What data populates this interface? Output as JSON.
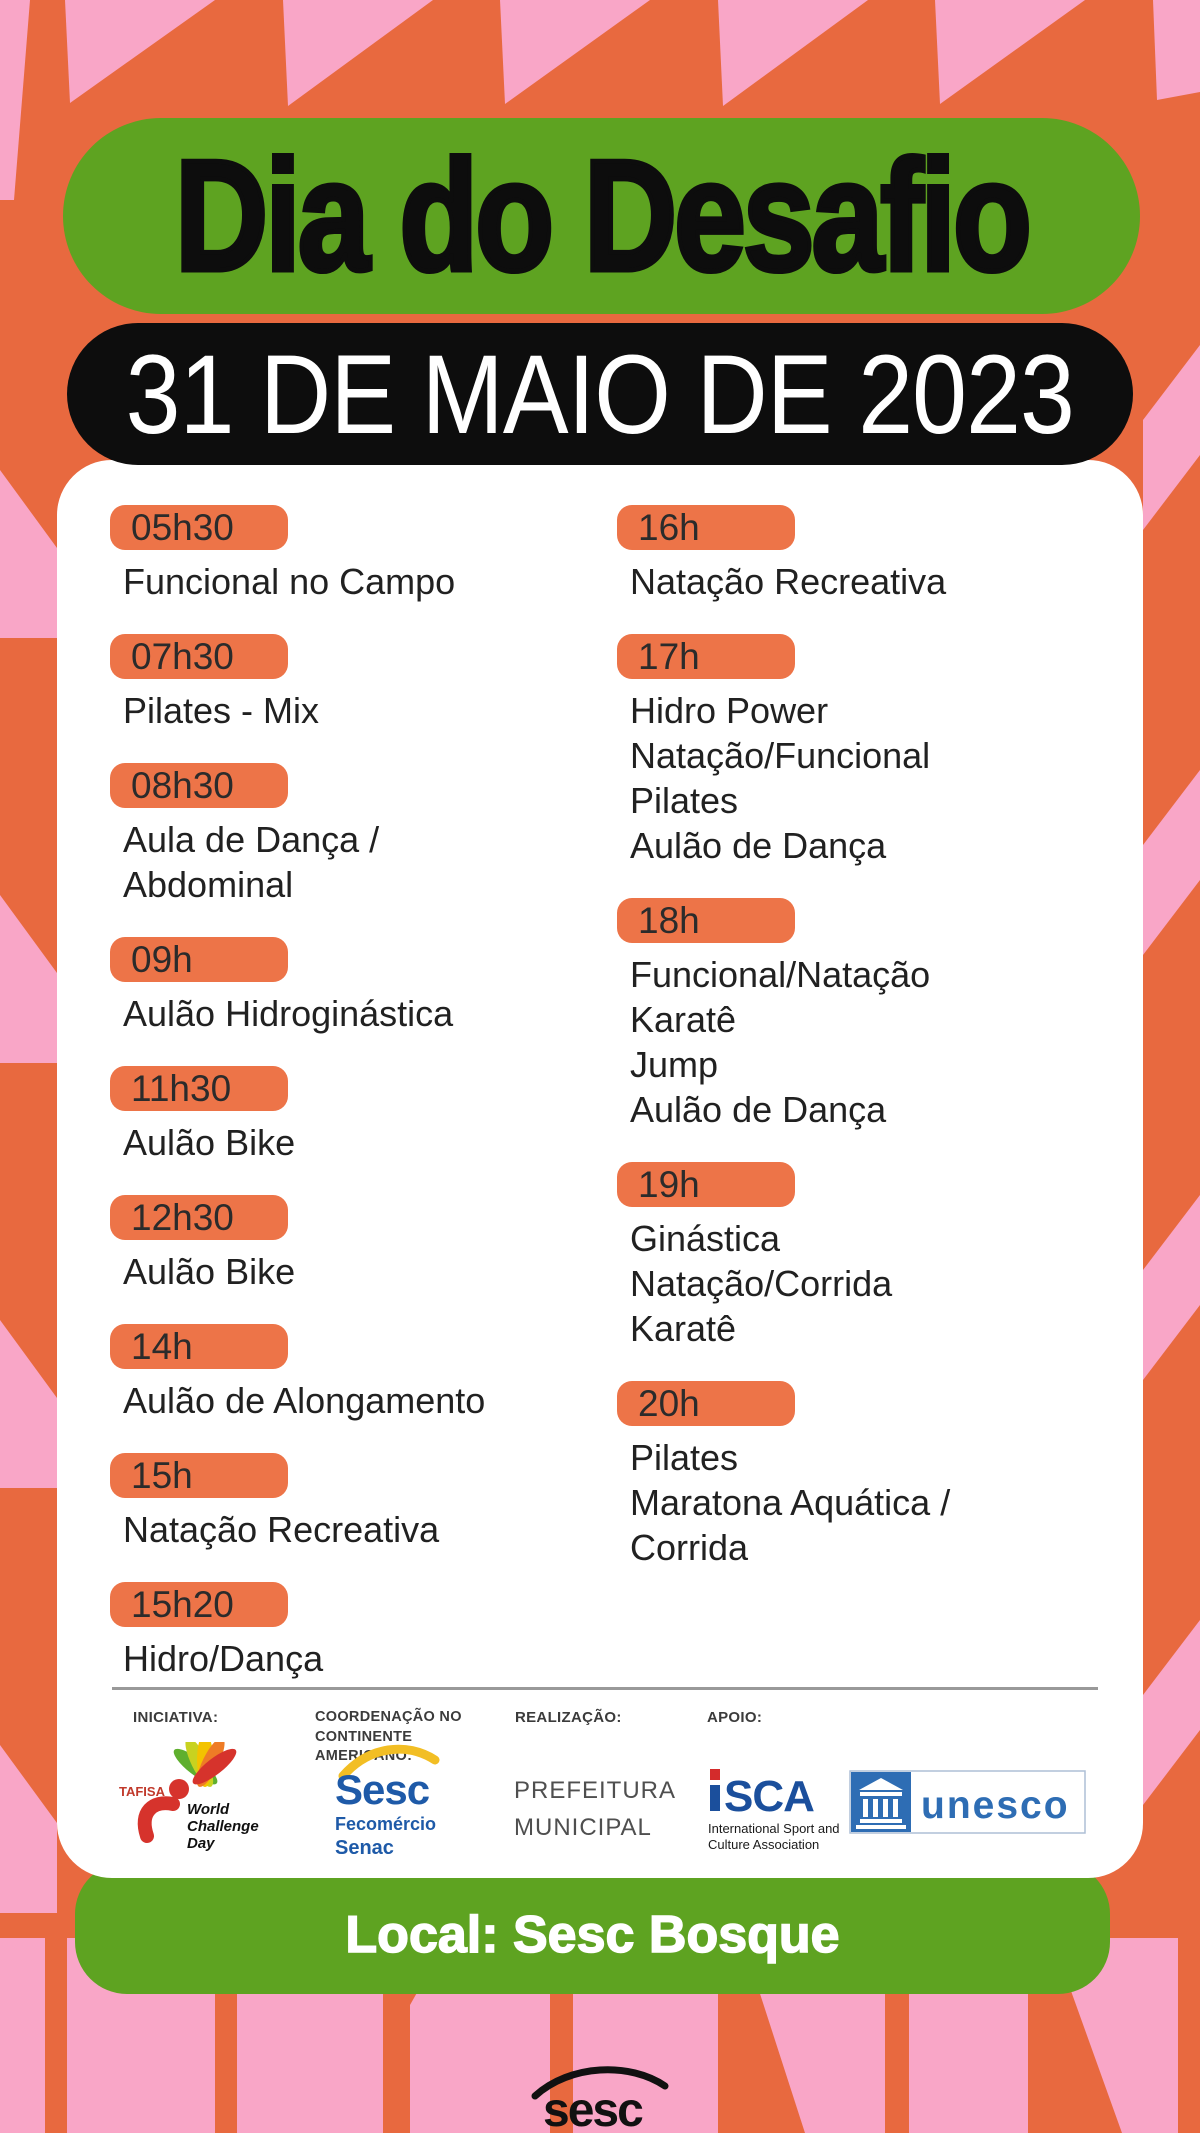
{
  "colors": {
    "orange": "#E8693F",
    "pink": "#F9A6C7",
    "green": "#5EA321",
    "ink": "#0D0D0D",
    "pill": "#ED7448",
    "card": "#FFFFFF"
  },
  "header": {
    "title": "Dia do Desafio",
    "date": "31 DE MAIO DE 2023"
  },
  "schedule": {
    "left": [
      {
        "time": "05h30",
        "activities": [
          "Funcional no Campo"
        ]
      },
      {
        "time": "07h30",
        "activities": [
          "Pilates - Mix"
        ]
      },
      {
        "time": "08h30",
        "activities": [
          "Aula de Dança /",
          "Abdominal"
        ]
      },
      {
        "time": "09h",
        "activities": [
          "Aulão Hidroginástica"
        ]
      },
      {
        "time": "11h30",
        "activities": [
          "Aulão Bike"
        ]
      },
      {
        "time": "12h30",
        "activities": [
          "Aulão Bike"
        ]
      },
      {
        "time": "14h",
        "activities": [
          "Aulão de Alongamento"
        ]
      },
      {
        "time": "15h",
        "activities": [
          "Natação Recreativa"
        ]
      },
      {
        "time": "15h20",
        "activities": [
          "Hidro/Dança"
        ]
      }
    ],
    "right": [
      {
        "time": "16h",
        "activities": [
          "Natação Recreativa"
        ]
      },
      {
        "time": "17h",
        "activities": [
          "Hidro Power",
          "Natação/Funcional",
          "Pilates",
          "Aulão de Dança"
        ]
      },
      {
        "time": "18h",
        "activities": [
          "Funcional/Natação",
          "Karatê",
          "Jump",
          "Aulão de Dança"
        ]
      },
      {
        "time": "19h",
        "activities": [
          "Ginástica",
          "Natação/Corrida",
          "Karatê"
        ]
      },
      {
        "time": "20h",
        "activities": [
          "Pilates",
          "Maratona Aquática /",
          "Corrida"
        ]
      }
    ]
  },
  "partners": {
    "iniciativa_label": "INICIATIVA:",
    "coordenacao_label": "COORDENAÇÃO NO CONTINENTE AMERICANO:",
    "realizacao_label": "REALIZAÇÃO:",
    "apoio_label": "APOIO:",
    "tafisa": {
      "name": "TAFISA",
      "lines": [
        "World",
        "Challenge",
        "Day"
      ]
    },
    "sesc_fecomercio": {
      "sesc": "Sesc",
      "fecomercio": "Fecomércio",
      "senac": "Senac"
    },
    "prefeitura": {
      "lines": [
        "PREFEITURA",
        "MUNICIPAL"
      ]
    },
    "isca": {
      "acronym": "SCA",
      "caption": [
        "International Sport and",
        "Culture Association"
      ]
    },
    "unesco": {
      "wordmark": "unesco"
    }
  },
  "footer": {
    "location": "Local: Sesc Bosque",
    "sesc_logo_text": "sesc"
  }
}
